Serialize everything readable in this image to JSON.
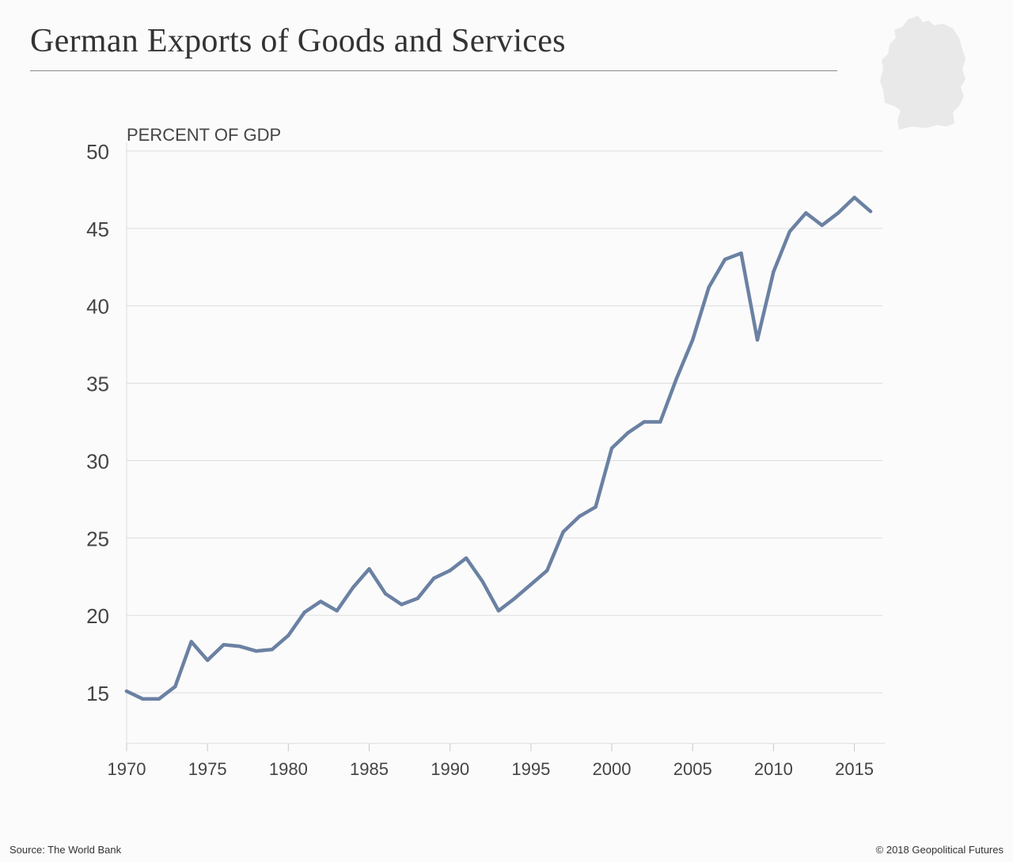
{
  "title": "German Exports of Goods and Services",
  "source": "Source: The World Bank",
  "copyright": "© 2018 Geopolitical Futures",
  "colors": {
    "line": "#6b81a3",
    "grid": "#dcdcdc",
    "map": "#e9e9e9"
  },
  "chart_data": {
    "type": "line",
    "title": "German Exports of Goods and Services",
    "ylabel": "PERCENT OF GDP",
    "xlabel": "",
    "xlim": [
      1970,
      2016
    ],
    "ylim": [
      12,
      50
    ],
    "y_ticks": [
      15,
      20,
      25,
      30,
      35,
      40,
      45,
      50
    ],
    "x_ticks": [
      1970,
      1975,
      1980,
      1985,
      1990,
      1995,
      2000,
      2005,
      2010,
      2015
    ],
    "grid": true,
    "series": [
      {
        "name": "Exports (% of GDP)",
        "x": [
          1970,
          1971,
          1972,
          1973,
          1974,
          1975,
          1976,
          1977,
          1978,
          1979,
          1980,
          1981,
          1982,
          1983,
          1984,
          1985,
          1986,
          1987,
          1988,
          1989,
          1990,
          1991,
          1992,
          1993,
          1994,
          1995,
          1996,
          1997,
          1998,
          1999,
          2000,
          2001,
          2002,
          2003,
          2004,
          2005,
          2006,
          2007,
          2008,
          2009,
          2010,
          2011,
          2012,
          2013,
          2014,
          2015,
          2016
        ],
        "values": [
          15.1,
          14.6,
          14.6,
          15.4,
          18.3,
          17.1,
          18.1,
          18.0,
          17.7,
          17.8,
          18.7,
          20.2,
          20.9,
          20.3,
          21.8,
          23.0,
          21.4,
          20.7,
          21.1,
          22.4,
          22.9,
          23.7,
          22.2,
          20.3,
          21.1,
          22.0,
          22.9,
          25.4,
          26.4,
          27.0,
          30.8,
          31.8,
          32.5,
          32.5,
          35.3,
          37.8,
          41.2,
          43.0,
          43.4,
          37.8,
          42.2,
          44.8,
          46.0,
          45.2,
          46.0,
          47.0,
          46.1
        ]
      }
    ]
  }
}
